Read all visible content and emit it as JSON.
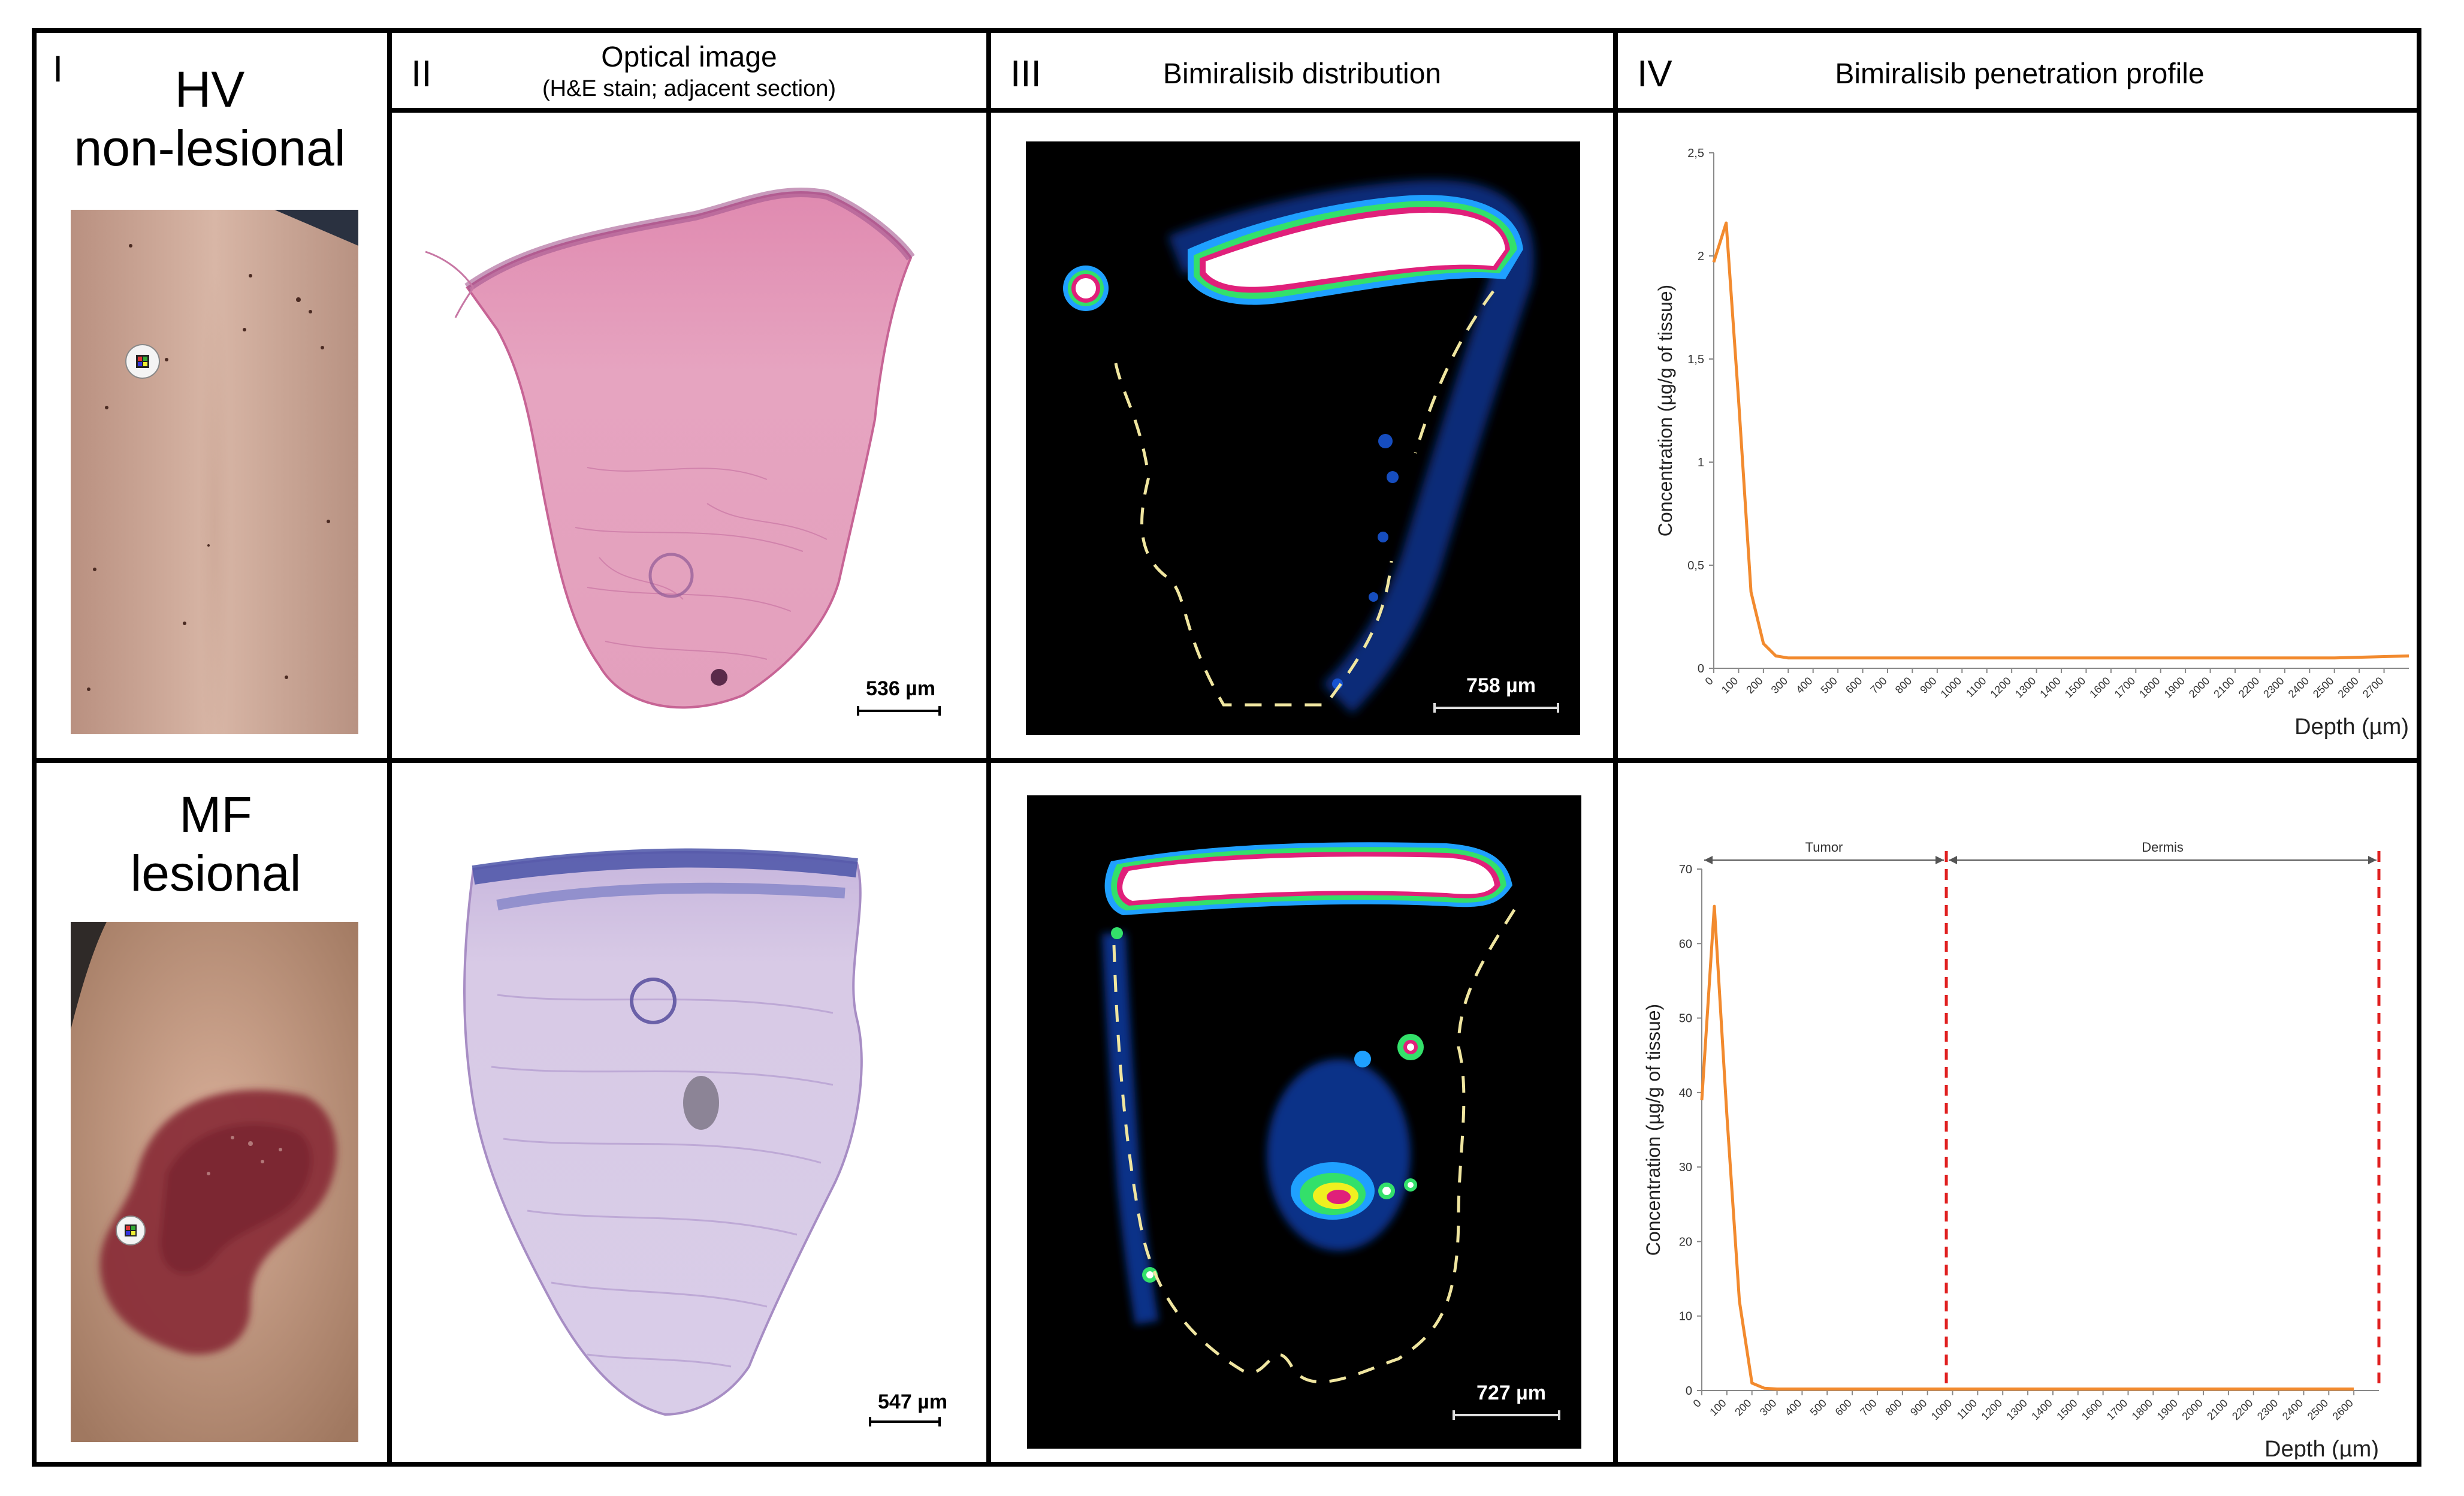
{
  "columns": {
    "c1": {
      "numeral": "I"
    },
    "c2": {
      "numeral": "II",
      "title": "Optical image",
      "subtitle": "(H&E stain; adjacent section)"
    },
    "c3": {
      "numeral": "III",
      "title": "Bimiralisib distribution"
    },
    "c4": {
      "numeral": "IV",
      "title": "Bimiralisib penetration profile"
    }
  },
  "rows": [
    {
      "label_line1": "HV",
      "label_line2": "non-lesional",
      "he_scale": "536 µm",
      "msi_scale": "758 µm"
    },
    {
      "label_line1": "MF",
      "label_line2": "lesional",
      "he_scale": "547 µm",
      "msi_scale": "727 µm"
    }
  ],
  "chart_data": [
    {
      "type": "line",
      "title": "",
      "xlabel": "Depth (µm)",
      "ylabel": "Concentration (µg/g of tissue)",
      "ylim": [
        0,
        2.5
      ],
      "yticks": [
        "0",
        "0,5",
        "1",
        "1,5",
        "2",
        "2,5"
      ],
      "xlim": [
        0,
        2800
      ],
      "xticks": [
        "0",
        "100",
        "200",
        "300",
        "400",
        "500",
        "600",
        "700",
        "800",
        "900",
        "1000",
        "1100",
        "1200",
        "1300",
        "1400",
        "1500",
        "1600",
        "1700",
        "1800",
        "1900",
        "2000",
        "2100",
        "2200",
        "2300",
        "2400",
        "2500",
        "2600",
        "2700"
      ],
      "series_color": "#f28a2e",
      "series": [
        {
          "name": "HV non-lesional",
          "x": [
            0,
            50,
            100,
            150,
            200,
            250,
            300,
            400,
            600,
            1000,
            1500,
            2000,
            2500,
            2800
          ],
          "y": [
            1.97,
            2.16,
            1.3,
            0.37,
            0.12,
            0.06,
            0.05,
            0.05,
            0.05,
            0.05,
            0.05,
            0.05,
            0.05,
            0.06
          ]
        }
      ]
    },
    {
      "type": "line",
      "title": "",
      "xlabel": "Depth (µm)",
      "ylabel": "Concentration (µg/g of tissue)",
      "ylim": [
        0,
        70
      ],
      "yticks": [
        "0",
        "10",
        "20",
        "30",
        "40",
        "50",
        "60",
        "70"
      ],
      "xlim": [
        0,
        2700
      ],
      "xticks": [
        "0",
        "100",
        "200",
        "300",
        "400",
        "500",
        "600",
        "700",
        "800",
        "900",
        "1000",
        "1100",
        "1200",
        "1300",
        "1400",
        "1500",
        "1600",
        "1700",
        "1800",
        "1900",
        "2000",
        "2100",
        "2200",
        "2300",
        "2400",
        "2500",
        "2600"
      ],
      "series_color": "#f28a2e",
      "series": [
        {
          "name": "MF lesional",
          "x": [
            0,
            50,
            100,
            150,
            200,
            250,
            300,
            500,
            1000,
            1500,
            2000,
            2600
          ],
          "y": [
            39,
            65,
            37,
            12,
            1,
            0.3,
            0.2,
            0.2,
            0.2,
            0.2,
            0.2,
            0.2
          ]
        }
      ],
      "annotations": [
        {
          "label": "Tumor",
          "from": 0,
          "to": 975
        },
        {
          "label": "Dermis",
          "from": 975,
          "to": 2700
        }
      ],
      "vlines": [
        975,
        2700
      ],
      "vline_color": "#e02020"
    }
  ]
}
